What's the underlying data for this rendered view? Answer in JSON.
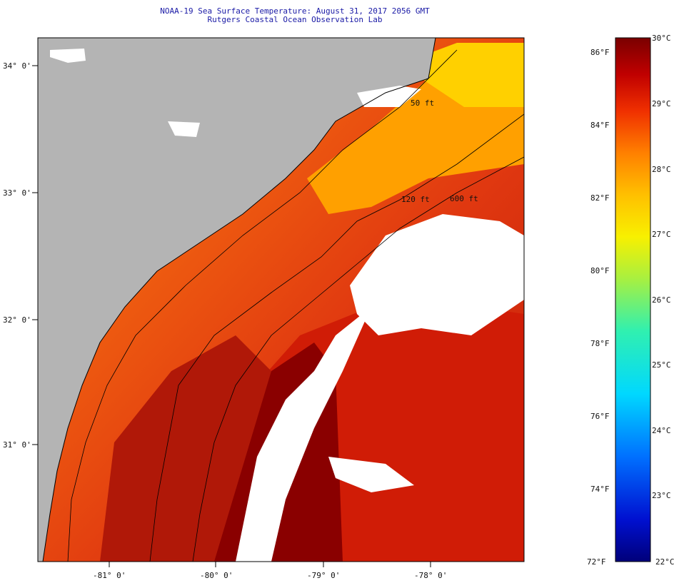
{
  "title": {
    "line1": "NOAA-19 Sea Surface Temperature:  August 31, 2017 2056 GMT",
    "line2": "Rutgers Coastal Ocean Observation Lab"
  },
  "map": {
    "lat_labels": [
      "34° 0'",
      "33° 0'",
      "32° 0'",
      "31° 0'"
    ],
    "lon_labels": [
      "-81° 0'",
      "-80° 0'",
      "-79° 0'",
      "-78° 0'"
    ],
    "isobaths": [
      "50 ft",
      "120 ft",
      "600 ft"
    ]
  },
  "colorbar": {
    "fahrenheit": [
      "86°F",
      "84°F",
      "82°F",
      "80°F",
      "78°F",
      "76°F",
      "74°F",
      "72°F"
    ],
    "celsius": [
      "30°C",
      "29°C",
      "28°C",
      "27°C",
      "26°C",
      "25°C",
      "24°C",
      "23°C",
      "22°C"
    ],
    "min_c": 22,
    "max_c": 30
  },
  "colors": {
    "land": "#b4b4b4",
    "cloud": "#ffffff",
    "warmest": "#7a0000",
    "coolest": "#00007a"
  }
}
